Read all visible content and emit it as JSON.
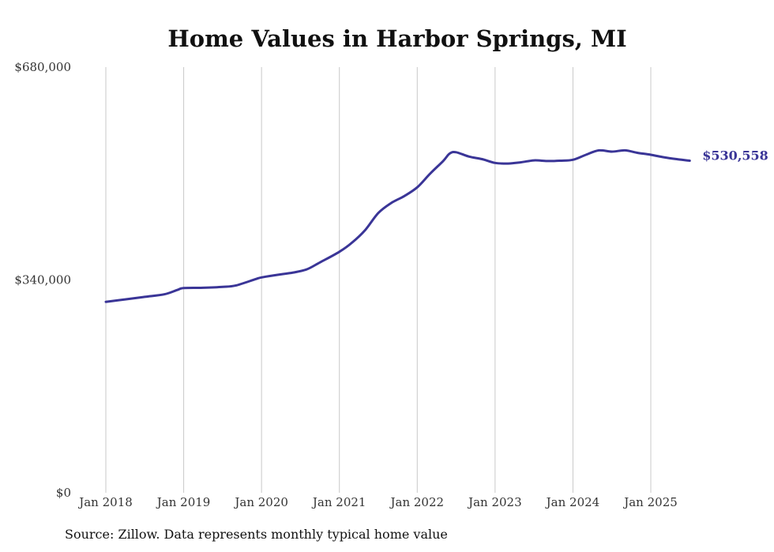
{
  "chart_data": {
    "type": "line",
    "title": "Home Values in Harbor Springs, MI",
    "xlabel": "",
    "ylabel": "",
    "ylim": [
      0,
      680000
    ],
    "yticks": [
      {
        "value": 0,
        "label": "$0"
      },
      {
        "value": 340000,
        "label": "$340,000"
      },
      {
        "value": 680000,
        "label": "$680,000"
      }
    ],
    "xticks": [
      {
        "value": "2018-01",
        "label": "Jan 2018"
      },
      {
        "value": "2019-01",
        "label": "Jan 2019"
      },
      {
        "value": "2020-01",
        "label": "Jan 2020"
      },
      {
        "value": "2021-01",
        "label": "Jan 2021"
      },
      {
        "value": "2022-01",
        "label": "Jan 2022"
      },
      {
        "value": "2023-01",
        "label": "Jan 2023"
      },
      {
        "value": "2024-01",
        "label": "Jan 2024"
      },
      {
        "value": "2025-01",
        "label": "Jan 2025"
      }
    ],
    "grid": "vertical",
    "line_color": "#3a3597",
    "end_label": "$530,558",
    "series": [
      {
        "x": [
          "2018-01",
          "2018-04",
          "2018-07",
          "2018-10",
          "2018-12",
          "2019-01",
          "2019-04",
          "2019-07",
          "2019-09",
          "2019-12",
          "2020-01",
          "2020-04",
          "2020-06",
          "2020-08",
          "2020-10",
          "2021-01",
          "2021-03",
          "2021-05",
          "2021-07",
          "2021-09",
          "2021-11",
          "2022-01",
          "2022-03",
          "2022-05",
          "2022-06",
          "2022-07",
          "2022-09",
          "2022-11",
          "2023-01",
          "2023-03",
          "2023-05",
          "2023-07",
          "2023-09",
          "2023-11",
          "2024-01",
          "2024-03",
          "2024-05",
          "2024-07",
          "2024-09",
          "2024-11",
          "2025-01",
          "2025-03",
          "2025-05",
          "2025-07"
        ],
        "values": [
          305000,
          309000,
          313000,
          317000,
          324000,
          327000,
          327500,
          329000,
          331000,
          341000,
          344000,
          349000,
          352000,
          357000,
          368000,
          385000,
          400000,
          420000,
          447000,
          463000,
          474000,
          488000,
          510000,
          530000,
          542000,
          544000,
          537000,
          533000,
          527000,
          526000,
          528000,
          531000,
          530000,
          530500,
          532000,
          540000,
          547000,
          545000,
          547000,
          543000,
          540000,
          536000,
          533000,
          530558
        ]
      }
    ],
    "source": "Source: Zillow. Data represents monthly typical home value"
  }
}
